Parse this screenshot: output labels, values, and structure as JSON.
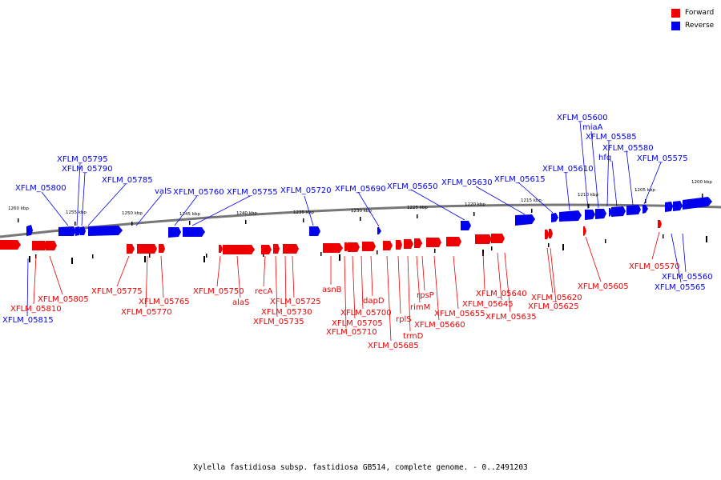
{
  "legend": [
    {
      "label": "Forward",
      "color": "#ee0000"
    },
    {
      "label": "Reverse",
      "color": "#0000ee"
    }
  ],
  "caption": "Xylella fastidiosa subsp. fastidiosa GB514, complete genome. - 0..2491203",
  "colors": {
    "forward": "#ee0000",
    "reverse": "#0000ee",
    "axis": "#777777"
  },
  "scale_labels": [
    "1260 kbp",
    "1255 kbp",
    "1250 kbp",
    "1245 kbp",
    "1240 kbp",
    "1235 kbp",
    "1230 kbp",
    "1225 kbp",
    "1220 kbp",
    "1215 kbp",
    "1210 kbp",
    "1205 kbp",
    "1200 kbp"
  ],
  "reverse_labels": [
    "XFLM_05800",
    "XFLM_05795",
    "XFLM_05790",
    "XFLM_05785",
    "valS",
    "XFLM_05760",
    "XFLM_05755",
    "XFLM_05720",
    "XFLM_05690",
    "XFLM_05650",
    "XFLM_05630",
    "XFLM_05615",
    "XFLM_05610",
    "XFLM_05600",
    "miaA",
    "XFLM_05585",
    "hfq",
    "XFLM_05580",
    "XFLM_05575",
    "XFLM_05815",
    "XFLM_05565",
    "XFLM_05560"
  ],
  "forward_labels": [
    "XFLM_05810",
    "XFLM_05805",
    "XFLM_05775",
    "XFLM_05770",
    "XFLM_05765",
    "XFLM_05750",
    "alaS",
    "recA",
    "XFLM_05725",
    "XFLM_05730",
    "XFLM_05735",
    "asnB",
    "dapD",
    "XFLM_05700",
    "XFLM_05705",
    "XFLM_05710",
    "XFLM_05685",
    "rplS",
    "trmD",
    "rimM",
    "rpsP",
    "XFLM_05660",
    "XFLM_05655",
    "XFLM_05640",
    "XFLM_05645",
    "XFLM_05635",
    "XFLM_05620",
    "XFLM_05625",
    "XFLM_05605",
    "XFLM_05570"
  ]
}
